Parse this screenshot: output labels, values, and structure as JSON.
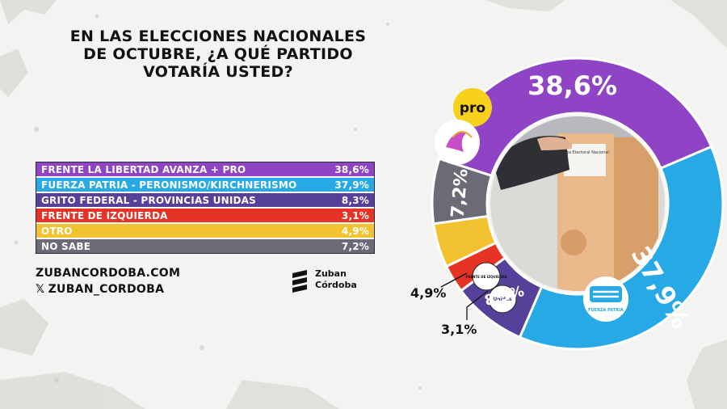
{
  "title_lines": [
    "EN LAS ELECCIONES NACIONALES",
    "DE OCTUBRE, ¿A QUÉ PARTIDO",
    "VOTARÍA USTED?"
  ],
  "footer": {
    "website": "ZUBANCORDOBA.COM",
    "x_handle": "ZUBAN_CORDOBA",
    "brand_line1": "Zuban",
    "brand_line2": "Córdoba"
  },
  "logos": {
    "pro_text": "pro",
    "fip_text": "FRENTE DE IZQUIERDA",
    "unidas_text": "Unidas",
    "fuerza_patria_text": "FUERZA PATRIA",
    "ballot_label": "Junta Electoral Nacional"
  },
  "colors": {
    "lla": "#8e44c5",
    "fuerza_patria": "#27a9e6",
    "grito_federal": "#55419a",
    "izquierda": "#e63326",
    "otro": "#f2c230",
    "no_sabe": "#6b6b78",
    "background": "#f3f3f1"
  },
  "chart_data": {
    "type": "pie",
    "style": "donut",
    "title": "EN LAS ELECCIONES NACIONALES DE OCTUBRE, ¿A QUÉ PARTIDO VOTARÍA USTED?",
    "unit": "%",
    "slices": [
      {
        "name": "FRENTE LA LIBERTAD AVANZA + PRO",
        "value": 38.6,
        "label": "38,6%",
        "color": "#8e44c5"
      },
      {
        "name": "FUERZA PATRIA - PERONISMO/KIRCHNERISMO",
        "value": 37.9,
        "label": "37,9%",
        "color": "#27a9e6"
      },
      {
        "name": "GRITO FEDERAL - PROVINCIAS UNIDAS",
        "value": 8.3,
        "label": "8,3%",
        "color": "#55419a"
      },
      {
        "name": "FRENTE DE IZQUIERDA",
        "value": 3.1,
        "label": "3,1%",
        "color": "#e63326"
      },
      {
        "name": "OTRO",
        "value": 4.9,
        "label": "4,9%",
        "color": "#f2c230"
      },
      {
        "name": "NO SABE",
        "value": 7.2,
        "label": "7,2%",
        "color": "#6b6b78"
      }
    ]
  }
}
